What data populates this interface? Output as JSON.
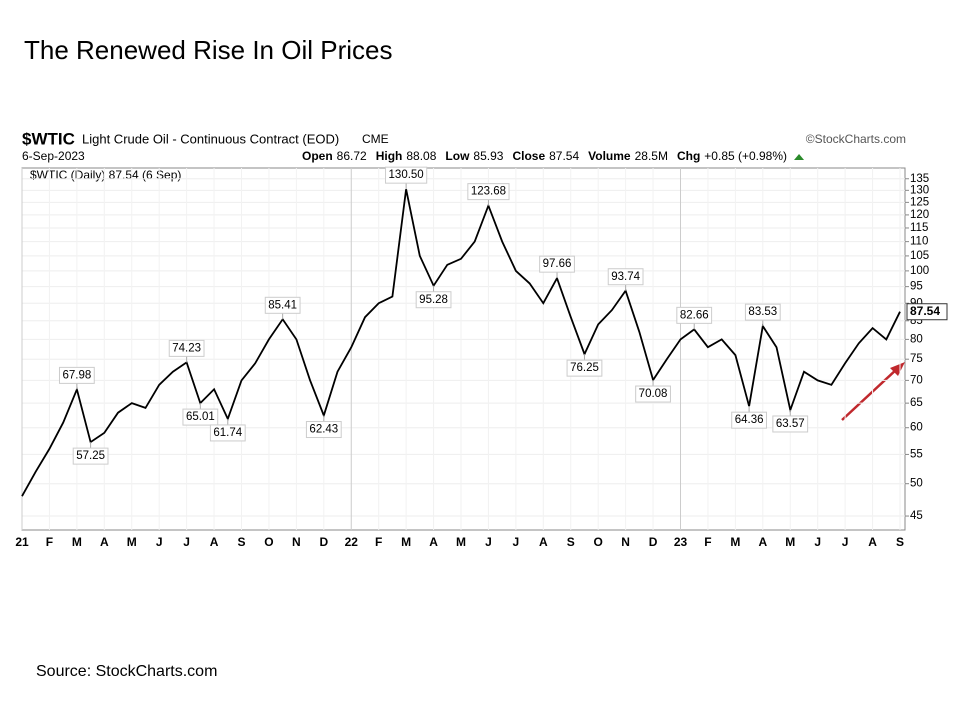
{
  "page": {
    "title": "The Renewed Rise In Oil Prices",
    "source": "Source: StockCharts.com"
  },
  "chart_data": {
    "type": "line",
    "symbol": "$WTIC",
    "subtitle": "Light Crude Oil - Continuous Contract (EOD)",
    "exchange": "CME",
    "credit": "©StockCharts.com",
    "date": "6-Sep-2023",
    "quote": [
      {
        "label": "Open",
        "value": "86.72"
      },
      {
        "label": "High",
        "value": "88.08"
      },
      {
        "label": "Low",
        "value": "85.93"
      },
      {
        "label": "Close",
        "value": "87.54"
      },
      {
        "label": "Volume",
        "value": "28.5M"
      },
      {
        "label": "Chg",
        "value": "+0.85 (+0.98%)"
      }
    ],
    "legend": "$WTIC (Daily) 87.54 (6 Sep)",
    "categories": [
      "21",
      null,
      "F",
      null,
      "M",
      null,
      "A",
      null,
      "M",
      null,
      "J",
      null,
      "J",
      null,
      "A",
      null,
      "S",
      null,
      "O",
      null,
      "N",
      null,
      "D",
      null,
      "22",
      null,
      "F",
      null,
      "M",
      null,
      "A",
      null,
      "M",
      null,
      "J",
      null,
      "J",
      null,
      "A",
      null,
      "S",
      null,
      "O",
      null,
      "N",
      null,
      "D",
      null,
      "23",
      null,
      "F",
      null,
      "M",
      null,
      "A",
      null,
      "M",
      null,
      "J",
      null,
      "J",
      null,
      "A",
      null,
      "S"
    ],
    "series": [
      {
        "name": "$WTIC",
        "color": "#000000",
        "values": [
          48,
          52,
          56,
          61,
          67.98,
          57.25,
          59,
          63,
          65,
          64,
          69,
          72,
          74.23,
          65.01,
          68,
          61.74,
          70,
          74,
          80,
          85.41,
          80,
          70,
          62.43,
          72,
          78,
          86,
          90,
          92,
          130.5,
          105,
          95.28,
          102,
          104,
          110,
          123.68,
          110,
          100,
          96,
          90,
          97.66,
          86,
          76.25,
          84,
          88,
          93.74,
          82,
          70.08,
          75,
          80,
          82.66,
          78,
          80,
          76,
          64.36,
          83.53,
          78,
          63.57,
          72,
          70,
          69,
          74,
          79,
          83,
          80,
          87.54
        ],
        "value_labels": [
          null,
          null,
          null,
          null,
          "67.98",
          "57.25",
          null,
          null,
          null,
          null,
          null,
          null,
          "74.23",
          "65.01",
          null,
          "61.74",
          null,
          null,
          null,
          "85.41",
          null,
          null,
          "62.43",
          null,
          null,
          null,
          null,
          null,
          "130.50",
          null,
          "95.28",
          null,
          null,
          null,
          "123.68",
          null,
          null,
          null,
          null,
          "97.66",
          null,
          "76.25",
          null,
          null,
          "93.74",
          null,
          "70.08",
          null,
          null,
          "82.66",
          null,
          null,
          null,
          "64.36",
          "83.53",
          null,
          "63.57",
          null,
          null,
          null,
          null,
          null,
          null,
          null,
          "87.54"
        ]
      }
    ],
    "log_scale": true,
    "ylim": [
      43,
      138
    ],
    "yticks": [
      45,
      50,
      55,
      60,
      65,
      70,
      75,
      80,
      85,
      90,
      95,
      100,
      105,
      110,
      115,
      120,
      125,
      130,
      135
    ],
    "grid": true
  }
}
